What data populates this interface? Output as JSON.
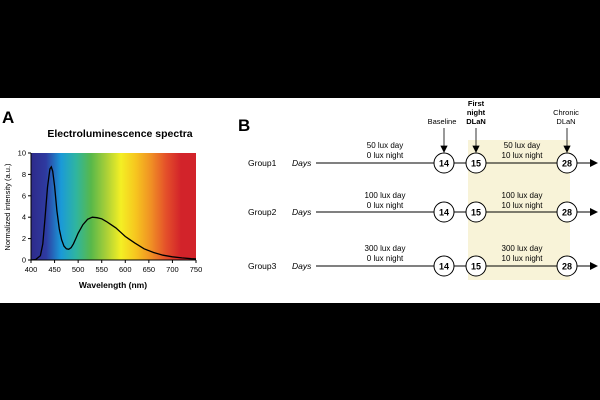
{
  "panel_a": {
    "letter": "A"
  },
  "panel_b": {
    "letter": "B",
    "markers": {
      "baseline": "Baseline",
      "first_night": [
        "First",
        "night",
        "DLaN"
      ],
      "chronic": [
        "Chronic",
        "DLaN"
      ]
    },
    "days_label": "Days",
    "groups": [
      {
        "name": "Group1",
        "pre": [
          "50 lux day",
          "0 lux night"
        ],
        "post": [
          "50 lux day",
          "10 lux night"
        ]
      },
      {
        "name": "Group2",
        "pre": [
          "100 lux day",
          "0 lux night"
        ],
        "post": [
          "100 lux day",
          "10 lux night"
        ]
      },
      {
        "name": "Group3",
        "pre": [
          "300 lux day",
          "0 lux night"
        ],
        "post": [
          "300 lux day",
          "10 lux night"
        ]
      }
    ],
    "day_numbers": [
      "14",
      "15",
      "28"
    ],
    "highlight_color": "#f8f3d8"
  },
  "chart_data": {
    "type": "line",
    "title": "Electroluminescence spectra",
    "xlabel": "Wavelength (nm)",
    "ylabel": "Normalized intensity (a.u.)",
    "xlim": [
      400,
      750
    ],
    "ylim": [
      0,
      10
    ],
    "xticks": [
      400,
      450,
      500,
      550,
      600,
      650,
      700,
      750
    ],
    "yticks": [
      0,
      2,
      4,
      6,
      8,
      10
    ],
    "series": [
      {
        "name": "Electroluminescence",
        "x": [
          400,
          410,
          420,
          425,
          430,
          435,
          440,
          443,
          446,
          450,
          455,
          460,
          465,
          470,
          475,
          480,
          485,
          490,
          495,
          500,
          510,
          520,
          530,
          540,
          550,
          560,
          570,
          580,
          590,
          600,
          620,
          640,
          660,
          680,
          700,
          720,
          740,
          750
        ],
        "y": [
          0.0,
          0.05,
          0.4,
          1.5,
          4.0,
          6.8,
          8.5,
          8.7,
          8.3,
          6.9,
          4.6,
          2.9,
          1.9,
          1.3,
          1.05,
          1.0,
          1.15,
          1.5,
          2.0,
          2.5,
          3.3,
          3.8,
          4.0,
          3.95,
          3.85,
          3.6,
          3.3,
          3.0,
          2.6,
          2.2,
          1.6,
          1.05,
          0.7,
          0.45,
          0.3,
          0.2,
          0.12,
          0.1
        ]
      }
    ],
    "background_gradient": [
      "#2e2a8a",
      "#2e3aa0",
      "#1a9ad8",
      "#2fb5a0",
      "#58b84a",
      "#a8cf38",
      "#f4ef24",
      "#f6c51f",
      "#f09024",
      "#e4502a",
      "#d2232a",
      "#d2232a"
    ]
  }
}
